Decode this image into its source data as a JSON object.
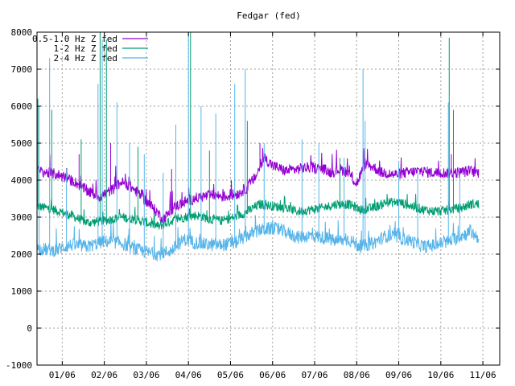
{
  "chart_data": {
    "type": "line",
    "title": "Fedgar (fed)",
    "xlabel": "",
    "ylabel": "",
    "ylim": [
      -1000,
      8000
    ],
    "yticks": [
      -1000,
      0,
      1000,
      2000,
      3000,
      4000,
      5000,
      6000,
      7000,
      8000
    ],
    "ytick_labels": [
      "-1000",
      "0",
      "1000",
      "2000",
      "3000",
      "4000",
      "5000",
      "6000",
      "7000",
      "8000"
    ],
    "x_unit": "month index since 12/06 start (0 = start of 01/06 period)",
    "xlim": [
      0.0,
      11.0
    ],
    "xticks": [
      0.6,
      1.6,
      2.6,
      3.6,
      4.6,
      5.6,
      6.6,
      7.6,
      8.6,
      9.6,
      10.6
    ],
    "xtick_labels": [
      "01/06",
      "02/06",
      "03/06",
      "04/06",
      "05/06",
      "06/06",
      "07/06",
      "08/06",
      "09/06",
      "10/06",
      "11/06"
    ],
    "grid": true,
    "legend_position": "top-left",
    "series": [
      {
        "name": "0.5-1.0 Hz Z fed",
        "color": "#9400d3",
        "band": 150,
        "x": [
          0.0,
          0.5,
          0.9,
          1.2,
          1.5,
          1.8,
          2.0,
          2.2,
          2.5,
          2.8,
          3.0,
          3.3,
          3.6,
          3.9,
          4.2,
          4.5,
          4.8,
          5.0,
          5.2,
          5.4,
          5.6,
          5.9,
          6.2,
          6.5,
          6.8,
          7.0,
          7.2,
          7.4,
          7.6,
          7.8,
          8.0,
          8.2,
          8.5,
          8.8,
          9.1,
          9.4,
          9.7,
          10.0,
          10.3,
          10.5
        ],
        "y": [
          4250,
          4150,
          3950,
          3700,
          3550,
          3750,
          3950,
          3850,
          3550,
          3200,
          2950,
          3300,
          3450,
          3550,
          3600,
          3550,
          3650,
          3800,
          4100,
          4600,
          4400,
          4250,
          4300,
          4350,
          4300,
          4200,
          4300,
          4200,
          3900,
          4450,
          4350,
          4200,
          4150,
          4200,
          4250,
          4200,
          4200,
          4200,
          4250,
          4200
        ]
      },
      {
        "name": "1-2 Hz Z fed",
        "color": "#009e73",
        "band": 130,
        "x": [
          0.0,
          0.4,
          0.8,
          1.2,
          1.6,
          2.0,
          2.3,
          2.6,
          2.9,
          3.2,
          3.5,
          3.8,
          4.1,
          4.4,
          4.7,
          5.0,
          5.3,
          5.6,
          5.9,
          6.2,
          6.5,
          6.8,
          7.1,
          7.4,
          7.7,
          8.0,
          8.3,
          8.6,
          8.9,
          9.2,
          9.5,
          9.8,
          10.1,
          10.3,
          10.5
        ],
        "y": [
          3300,
          3200,
          3050,
          2850,
          2900,
          3000,
          2950,
          2850,
          2750,
          2900,
          3000,
          3050,
          2950,
          2900,
          3000,
          3150,
          3350,
          3300,
          3250,
          3150,
          3200,
          3250,
          3350,
          3350,
          3200,
          3250,
          3400,
          3400,
          3300,
          3200,
          3150,
          3200,
          3250,
          3350,
          3350
        ]
      },
      {
        "name": "2-4 Hz Z fed",
        "color": "#56b4e9",
        "band": 180,
        "x": [
          0.0,
          0.4,
          0.8,
          1.2,
          1.6,
          2.0,
          2.3,
          2.6,
          2.9,
          3.2,
          3.5,
          3.8,
          4.1,
          4.4,
          4.7,
          5.0,
          5.3,
          5.6,
          5.9,
          6.2,
          6.5,
          6.8,
          7.1,
          7.4,
          7.7,
          8.0,
          8.3,
          8.6,
          8.9,
          9.2,
          9.5,
          9.8,
          10.1,
          10.3,
          10.5
        ],
        "y": [
          2150,
          2100,
          2250,
          2200,
          2350,
          2300,
          2150,
          2050,
          2000,
          2100,
          2400,
          2300,
          2250,
          2250,
          2300,
          2500,
          2650,
          2700,
          2600,
          2450,
          2500,
          2450,
          2350,
          2400,
          2200,
          2300,
          2500,
          2450,
          2350,
          2200,
          2250,
          2350,
          2500,
          2600,
          2450
        ]
      }
    ],
    "spikes": [
      {
        "series": 0,
        "x": 1.0,
        "y": 4700
      },
      {
        "series": 0,
        "x": 1.75,
        "y": 5000
      },
      {
        "series": 0,
        "x": 3.2,
        "y": 4300
      },
      {
        "series": 0,
        "x": 5.3,
        "y": 5000
      },
      {
        "series": 0,
        "x": 7.75,
        "y": 4800
      },
      {
        "series": 0,
        "x": 9.85,
        "y": 4700
      },
      {
        "series": 1,
        "x": 0.02,
        "y": 6200
      },
      {
        "series": 1,
        "x": 0.35,
        "y": 5900
      },
      {
        "series": 1,
        "x": 1.05,
        "y": 5100
      },
      {
        "series": 1,
        "x": 1.5,
        "y": 8000
      },
      {
        "series": 1,
        "x": 1.65,
        "y": 7800
      },
      {
        "series": 1,
        "x": 2.4,
        "y": 4900
      },
      {
        "series": 1,
        "x": 4.1,
        "y": 4800
      },
      {
        "series": 1,
        "x": 5.0,
        "y": 5600
      },
      {
        "series": 1,
        "x": 7.2,
        "y": 4600
      },
      {
        "series": 1,
        "x": 9.8,
        "y": 7850
      },
      {
        "series": 1,
        "x": 9.9,
        "y": 5900
      },
      {
        "series": 1,
        "x": 3.65,
        "y": 8000
      },
      {
        "series": 2,
        "x": 0.05,
        "y": 6000
      },
      {
        "series": 2,
        "x": 0.3,
        "y": 7300
      },
      {
        "series": 2,
        "x": 0.7,
        "y": 4300
      },
      {
        "series": 2,
        "x": 1.45,
        "y": 6600
      },
      {
        "series": 2,
        "x": 1.55,
        "y": 7800
      },
      {
        "series": 2,
        "x": 1.9,
        "y": 6100
      },
      {
        "series": 2,
        "x": 2.2,
        "y": 5000
      },
      {
        "series": 2,
        "x": 2.55,
        "y": 4700
      },
      {
        "series": 2,
        "x": 3.0,
        "y": 4200
      },
      {
        "series": 2,
        "x": 3.3,
        "y": 5500
      },
      {
        "series": 2,
        "x": 3.6,
        "y": 8000
      },
      {
        "series": 2,
        "x": 3.9,
        "y": 6000
      },
      {
        "series": 2,
        "x": 4.25,
        "y": 5800
      },
      {
        "series": 2,
        "x": 4.7,
        "y": 6600
      },
      {
        "series": 2,
        "x": 4.95,
        "y": 7000
      },
      {
        "series": 2,
        "x": 5.4,
        "y": 5000
      },
      {
        "series": 2,
        "x": 6.3,
        "y": 5100
      },
      {
        "series": 2,
        "x": 6.7,
        "y": 5000
      },
      {
        "series": 2,
        "x": 7.3,
        "y": 4600
      },
      {
        "series": 2,
        "x": 7.75,
        "y": 7000
      },
      {
        "series": 2,
        "x": 7.8,
        "y": 5600
      },
      {
        "series": 2,
        "x": 8.6,
        "y": 4500
      },
      {
        "series": 2,
        "x": 9.05,
        "y": 4300
      },
      {
        "series": 2,
        "x": 9.78,
        "y": 6100
      },
      {
        "series": 2,
        "x": 10.05,
        "y": 4200
      }
    ]
  }
}
